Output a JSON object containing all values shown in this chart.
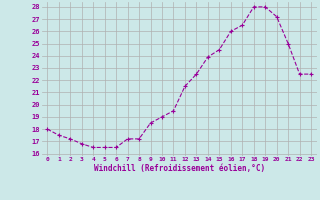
{
  "x": [
    0,
    1,
    2,
    3,
    4,
    5,
    6,
    7,
    8,
    9,
    10,
    11,
    12,
    13,
    14,
    15,
    16,
    17,
    18,
    19,
    20,
    21,
    22,
    23
  ],
  "y": [
    18.0,
    17.5,
    17.2,
    16.8,
    16.5,
    16.5,
    16.5,
    17.2,
    17.2,
    18.5,
    19.0,
    19.5,
    21.5,
    22.5,
    23.9,
    24.5,
    26.0,
    26.5,
    28.0,
    28.0,
    27.2,
    25.0,
    22.5,
    22.5
  ],
  "ylim_min": 15.8,
  "ylim_max": 28.4,
  "yticks": [
    16,
    17,
    18,
    19,
    20,
    21,
    22,
    23,
    24,
    25,
    26,
    27,
    28
  ],
  "xticks": [
    0,
    1,
    2,
    3,
    4,
    5,
    6,
    7,
    8,
    9,
    10,
    11,
    12,
    13,
    14,
    15,
    16,
    17,
    18,
    19,
    20,
    21,
    22,
    23
  ],
  "xlabel": "Windchill (Refroidissement éolien,°C)",
  "line_color": "#990099",
  "bg_color": "#cce8e8",
  "grid_color": "#b0b0b0",
  "tick_label_color": "#990099",
  "xlabel_color": "#990099"
}
